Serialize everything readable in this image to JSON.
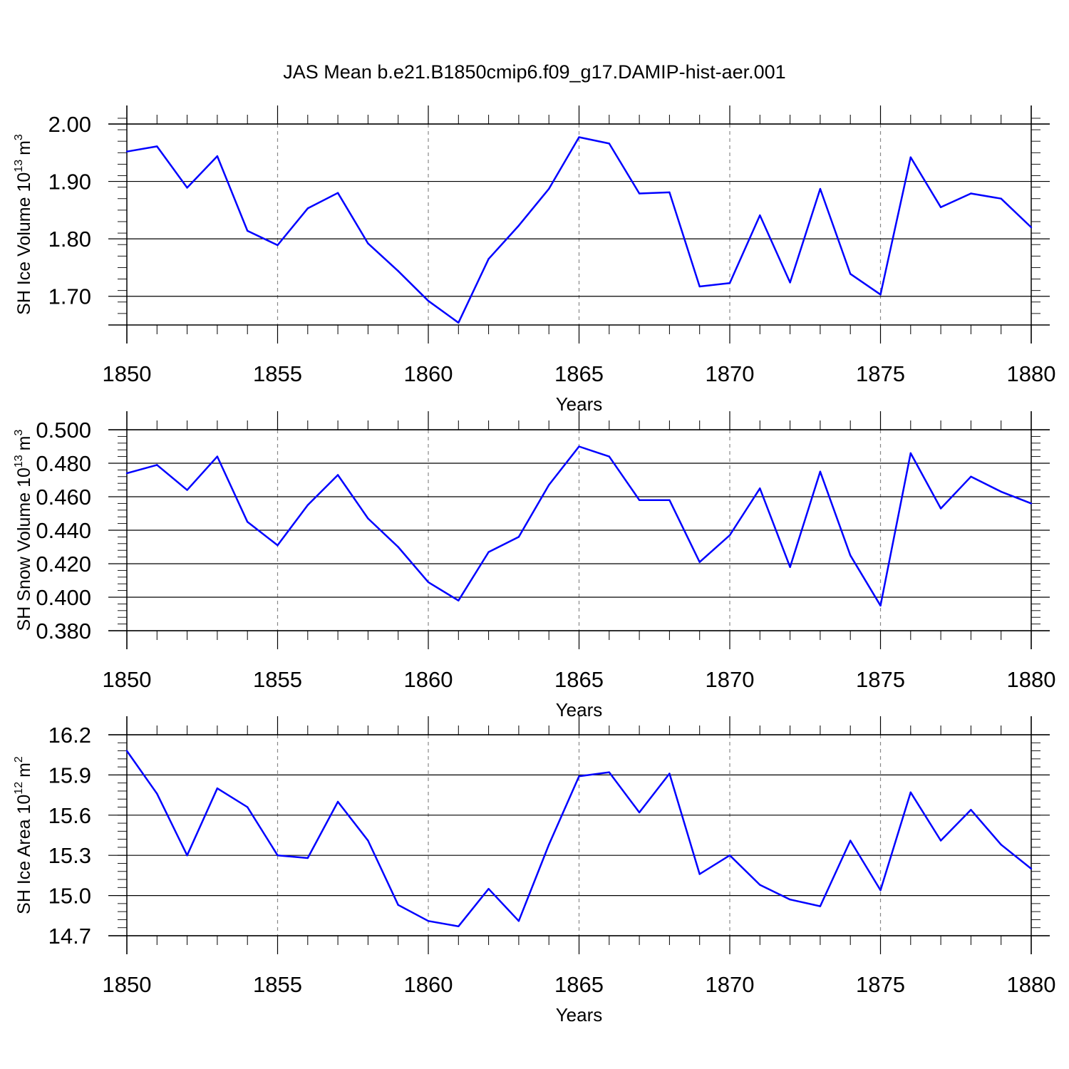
{
  "figure_title": "JAS Mean b.e21.B1850cmip6.f09_g17.DAMIP-hist-aer.001",
  "colors": {
    "line": "#0000ff",
    "axis": "#000000",
    "grid": "#888888"
  },
  "chart_data": [
    {
      "type": "line",
      "title": "JAS Mean b.e21.B1850cmip6.f09_g17.DAMIP-hist-aer.001",
      "xlabel": "Years",
      "ylabel_main": "SH Ice Volume 10",
      "ylabel_exp": "13",
      "ylabel_unit": "m",
      "ylabel_unit_exp": "3",
      "xlim": [
        1850,
        1880
      ],
      "ylim": [
        1.65,
        2.0
      ],
      "xticks": [
        "1850",
        "1855",
        "1860",
        "1865",
        "1870",
        "1875",
        "1880"
      ],
      "yticks": [
        {
          "value": 1.7,
          "label": "1.70"
        },
        {
          "value": 1.8,
          "label": "1.80"
        },
        {
          "value": 1.9,
          "label": "1.90"
        },
        {
          "value": 2.0,
          "label": "2.00"
        }
      ],
      "yminor_step": 0.02,
      "grid": "vertical dashed at major x ticks",
      "x": [
        1850,
        1851,
        1852,
        1853,
        1854,
        1855,
        1856,
        1857,
        1858,
        1859,
        1860,
        1861,
        1862,
        1863,
        1864,
        1865,
        1866,
        1867,
        1868,
        1869,
        1870,
        1871,
        1872,
        1873,
        1874,
        1875,
        1876,
        1877,
        1878,
        1879,
        1880
      ],
      "values": [
        1.952,
        1.961,
        1.889,
        1.944,
        1.814,
        1.789,
        1.853,
        1.88,
        1.792,
        1.744,
        1.692,
        1.654,
        1.765,
        1.823,
        1.887,
        1.977,
        1.966,
        1.879,
        1.881,
        1.717,
        1.723,
        1.841,
        1.724,
        1.887,
        1.739,
        1.703,
        1.942,
        1.855,
        1.879,
        1.87,
        1.82
      ]
    },
    {
      "type": "line",
      "title": "",
      "xlabel": "Years",
      "ylabel_main": "SH Snow Volume 10",
      "ylabel_exp": "13",
      "ylabel_unit": "m",
      "ylabel_unit_exp": "3",
      "xlim": [
        1850,
        1880
      ],
      "ylim": [
        0.38,
        0.5
      ],
      "xticks": [
        "1850",
        "1855",
        "1860",
        "1865",
        "1870",
        "1875",
        "1880"
      ],
      "yticks": [
        {
          "value": 0.38,
          "label": "0.380"
        },
        {
          "value": 0.4,
          "label": "0.400"
        },
        {
          "value": 0.42,
          "label": "0.420"
        },
        {
          "value": 0.44,
          "label": "0.440"
        },
        {
          "value": 0.46,
          "label": "0.460"
        },
        {
          "value": 0.48,
          "label": "0.480"
        },
        {
          "value": 0.5,
          "label": "0.500"
        }
      ],
      "yminor_step": 0.004,
      "grid": "vertical dashed at major x ticks",
      "x": [
        1850,
        1851,
        1852,
        1853,
        1854,
        1855,
        1856,
        1857,
        1858,
        1859,
        1860,
        1861,
        1862,
        1863,
        1864,
        1865,
        1866,
        1867,
        1868,
        1869,
        1870,
        1871,
        1872,
        1873,
        1874,
        1875,
        1876,
        1877,
        1878,
        1879,
        1880
      ],
      "values": [
        0.474,
        0.479,
        0.464,
        0.484,
        0.445,
        0.431,
        0.455,
        0.473,
        0.447,
        0.43,
        0.409,
        0.398,
        0.427,
        0.436,
        0.467,
        0.49,
        0.484,
        0.458,
        0.458,
        0.421,
        0.437,
        0.465,
        0.418,
        0.475,
        0.425,
        0.395,
        0.486,
        0.453,
        0.472,
        0.463,
        0.456
      ]
    },
    {
      "type": "line",
      "title": "",
      "xlabel": "Years",
      "ylabel_main": "SH Ice Area 10",
      "ylabel_exp": "12",
      "ylabel_unit": "m",
      "ylabel_unit_exp": "2",
      "xlim": [
        1850,
        1880
      ],
      "ylim": [
        14.7,
        16.2
      ],
      "xticks": [
        "1850",
        "1855",
        "1860",
        "1865",
        "1870",
        "1875",
        "1880"
      ],
      "yticks": [
        {
          "value": 14.7,
          "label": "14.7"
        },
        {
          "value": 15.0,
          "label": "15.0"
        },
        {
          "value": 15.3,
          "label": "15.3"
        },
        {
          "value": 15.6,
          "label": "15.6"
        },
        {
          "value": 15.9,
          "label": "15.9"
        },
        {
          "value": 16.2,
          "label": "16.2"
        }
      ],
      "yminor_step": 0.06,
      "grid": "vertical dashed at major x ticks",
      "x": [
        1850,
        1851,
        1852,
        1853,
        1854,
        1855,
        1856,
        1857,
        1858,
        1859,
        1860,
        1861,
        1862,
        1863,
        1864,
        1865,
        1866,
        1867,
        1868,
        1869,
        1870,
        1871,
        1872,
        1873,
        1874,
        1875,
        1876,
        1877,
        1878,
        1879,
        1880
      ],
      "values": [
        16.08,
        15.76,
        15.3,
        15.8,
        15.66,
        15.3,
        15.28,
        15.7,
        15.41,
        14.93,
        14.81,
        14.77,
        15.05,
        14.81,
        15.38,
        15.89,
        15.92,
        15.62,
        15.91,
        15.16,
        15.3,
        15.08,
        14.97,
        14.92,
        15.41,
        15.04,
        15.77,
        15.41,
        15.64,
        15.38,
        15.2
      ]
    }
  ]
}
